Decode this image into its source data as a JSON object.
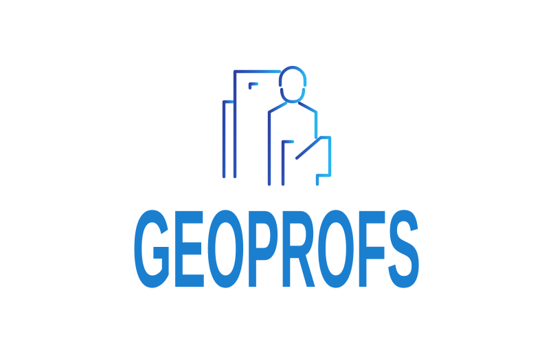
{
  "brand": {
    "name": "GEOPROFS",
    "color_primary": "#1b7fd0",
    "gradient_start": "#2c3fa3",
    "gradient_end": "#27b4ee"
  },
  "logo": {
    "emblem_icon": "building-engineer-icon"
  }
}
